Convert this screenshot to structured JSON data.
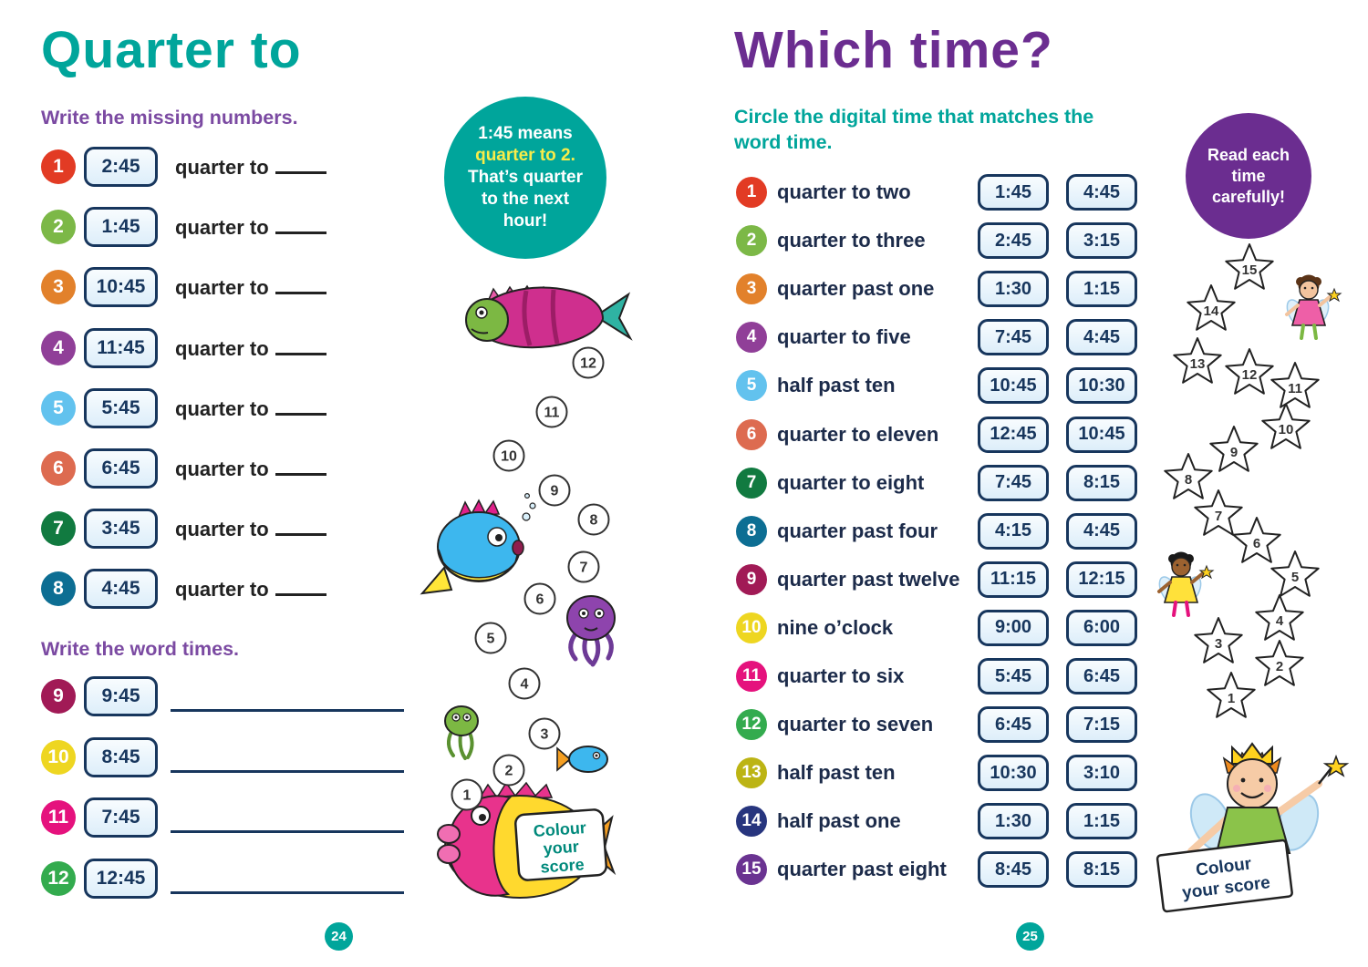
{
  "left_page": {
    "title": "Quarter to",
    "section1_heading": "Write the missing numbers.",
    "item_suffix": "quarter to",
    "items": [
      {
        "num": "1",
        "time": "2:45",
        "color": "#e23b24"
      },
      {
        "num": "2",
        "time": "1:45",
        "color": "#7cb847"
      },
      {
        "num": "3",
        "time": "10:45",
        "color": "#e2812b"
      },
      {
        "num": "4",
        "time": "11:45",
        "color": "#903f98"
      },
      {
        "num": "5",
        "time": "5:45",
        "color": "#62c2ee"
      },
      {
        "num": "6",
        "time": "6:45",
        "color": "#dd6b50"
      },
      {
        "num": "7",
        "time": "3:45",
        "color": "#117a40"
      },
      {
        "num": "8",
        "time": "4:45",
        "color": "#0d6e93"
      }
    ],
    "section2_heading": "Write the word times.",
    "word_items": [
      {
        "num": "9",
        "time": "9:45",
        "color": "#a11a56"
      },
      {
        "num": "10",
        "time": "8:45",
        "color": "#eed621"
      },
      {
        "num": "11",
        "time": "7:45",
        "color": "#e5127d"
      },
      {
        "num": "12",
        "time": "12:45",
        "color": "#33ab4e"
      }
    ],
    "tip": {
      "pre": "1:45 means",
      "highlight": "quarter to 2.",
      "post": "That’s quarter to the next hour!"
    },
    "dot_numbers": [
      "1",
      "2",
      "3",
      "4",
      "5",
      "6",
      "7",
      "8",
      "9",
      "10",
      "11",
      "12"
    ],
    "score_lines": [
      "Colour",
      "your",
      "score"
    ],
    "page_number": "24"
  },
  "right_page": {
    "title": "Which time?",
    "subtitle": "Circle the digital time that matches the word time.",
    "items": [
      {
        "num": "1",
        "label": "quarter to two",
        "a": "1:45",
        "b": "4:45",
        "color": "#e23b24"
      },
      {
        "num": "2",
        "label": "quarter to three",
        "a": "2:45",
        "b": "3:15",
        "color": "#7cb847"
      },
      {
        "num": "3",
        "label": "quarter past one",
        "a": "1:30",
        "b": "1:15",
        "color": "#e2812b"
      },
      {
        "num": "4",
        "label": "quarter to five",
        "a": "7:45",
        "b": "4:45",
        "color": "#903f98"
      },
      {
        "num": "5",
        "label": "half past ten",
        "a": "10:45",
        "b": "10:30",
        "color": "#62c2ee"
      },
      {
        "num": "6",
        "label": "quarter to eleven",
        "a": "12:45",
        "b": "10:45",
        "color": "#dd6b50"
      },
      {
        "num": "7",
        "label": "quarter to eight",
        "a": "7:45",
        "b": "8:15",
        "color": "#117a40"
      },
      {
        "num": "8",
        "label": "quarter past four",
        "a": "4:15",
        "b": "4:45",
        "color": "#0d6e93"
      },
      {
        "num": "9",
        "label": "quarter past twelve",
        "a": "11:15",
        "b": "12:15",
        "color": "#a11a56"
      },
      {
        "num": "10",
        "label": "nine o’clock",
        "a": "9:00",
        "b": "6:00",
        "color": "#eed621"
      },
      {
        "num": "11",
        "label": "quarter to six",
        "a": "5:45",
        "b": "6:45",
        "color": "#e5127d"
      },
      {
        "num": "12",
        "label": "quarter to seven",
        "a": "6:45",
        "b": "7:15",
        "color": "#33ab4e"
      },
      {
        "num": "13",
        "label": "half past ten",
        "a": "10:30",
        "b": "3:10",
        "color": "#bcb414"
      },
      {
        "num": "14",
        "label": "half past one",
        "a": "1:30",
        "b": "1:15",
        "color": "#27357e"
      },
      {
        "num": "15",
        "label": "quarter past eight",
        "a": "8:45",
        "b": "8:15",
        "color": "#6a3391"
      }
    ],
    "tip": "Read each time carefully!",
    "star_numbers": [
      "1",
      "2",
      "3",
      "4",
      "5",
      "6",
      "7",
      "8",
      "9",
      "10",
      "11",
      "12",
      "13",
      "14",
      "15"
    ],
    "score_lines": [
      "Colour",
      "your score"
    ],
    "page_number": "25"
  }
}
